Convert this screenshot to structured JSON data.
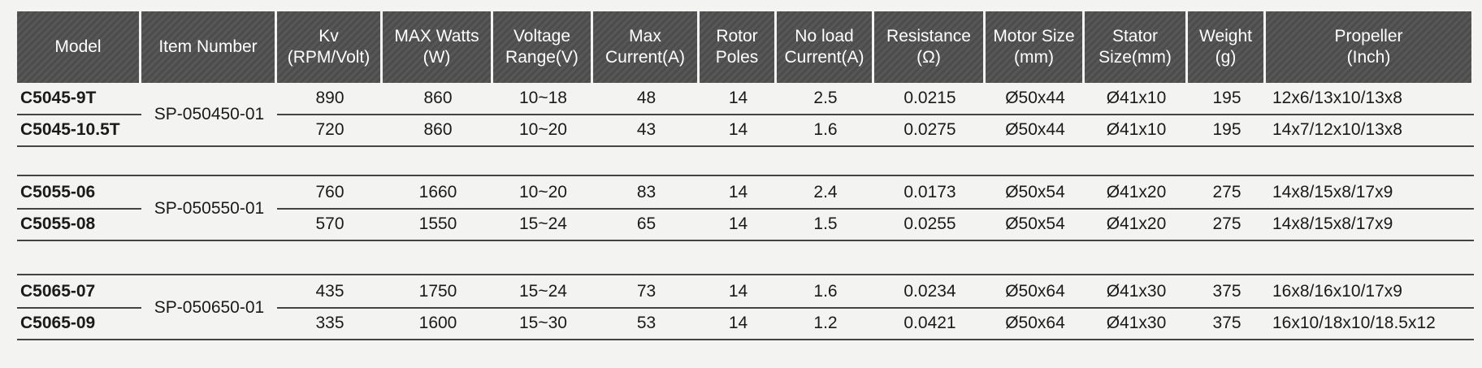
{
  "table": {
    "header": [
      "Model",
      "Item Number",
      "Kv\n(RPM/Volt)",
      "MAX Watts\n(W)",
      "Voltage\nRange(V)",
      "Max\nCurrent(A)",
      "Rotor\nPoles",
      "No load\nCurrent(A)",
      "Resistance\n(Ω)",
      "Motor Size\n(mm)",
      "Stator\nSize(mm)",
      "Weight\n(g)",
      "Propeller\n(Inch)"
    ],
    "groups": [
      {
        "item_number": "SP-050450-01",
        "rows": [
          [
            "C5045-9T",
            "890",
            "860",
            "10~18",
            "48",
            "14",
            "2.5",
            "0.0215",
            "Ø50x44",
            "Ø41x10",
            "195",
            "12x6/13x10/13x8"
          ],
          [
            "C5045-10.5T",
            "720",
            "860",
            "10~20",
            "43",
            "14",
            "1.6",
            "0.0275",
            "Ø50x44",
            "Ø41x10",
            "195",
            "14x7/12x10/13x8"
          ]
        ]
      },
      {
        "item_number": "SP-050550-01",
        "rows": [
          [
            "C5055-06",
            "760",
            "1660",
            "10~20",
            "83",
            "14",
            "2.4",
            "0.0173",
            "Ø50x54",
            "Ø41x20",
            "275",
            "14x8/15x8/17x9"
          ],
          [
            "C5055-08",
            "570",
            "1550",
            "15~24",
            "65",
            "14",
            "1.5",
            "0.0255",
            "Ø50x54",
            "Ø41x20",
            "275",
            "14x8/15x8/17x9"
          ]
        ]
      },
      {
        "item_number": "SP-050650-01",
        "rows": [
          [
            "C5065-07",
            "435",
            "1750",
            "15~24",
            "73",
            "14",
            "1.6",
            "0.0234",
            "Ø50x64",
            "Ø41x30",
            "375",
            "16x8/16x10/17x9"
          ],
          [
            "C5065-09",
            "335",
            "1600",
            "15~30",
            "53",
            "14",
            "1.2",
            "0.0421",
            "Ø50x64",
            "Ø41x30",
            "375",
            "16x10/18x10/18.5x12"
          ]
        ]
      }
    ]
  }
}
